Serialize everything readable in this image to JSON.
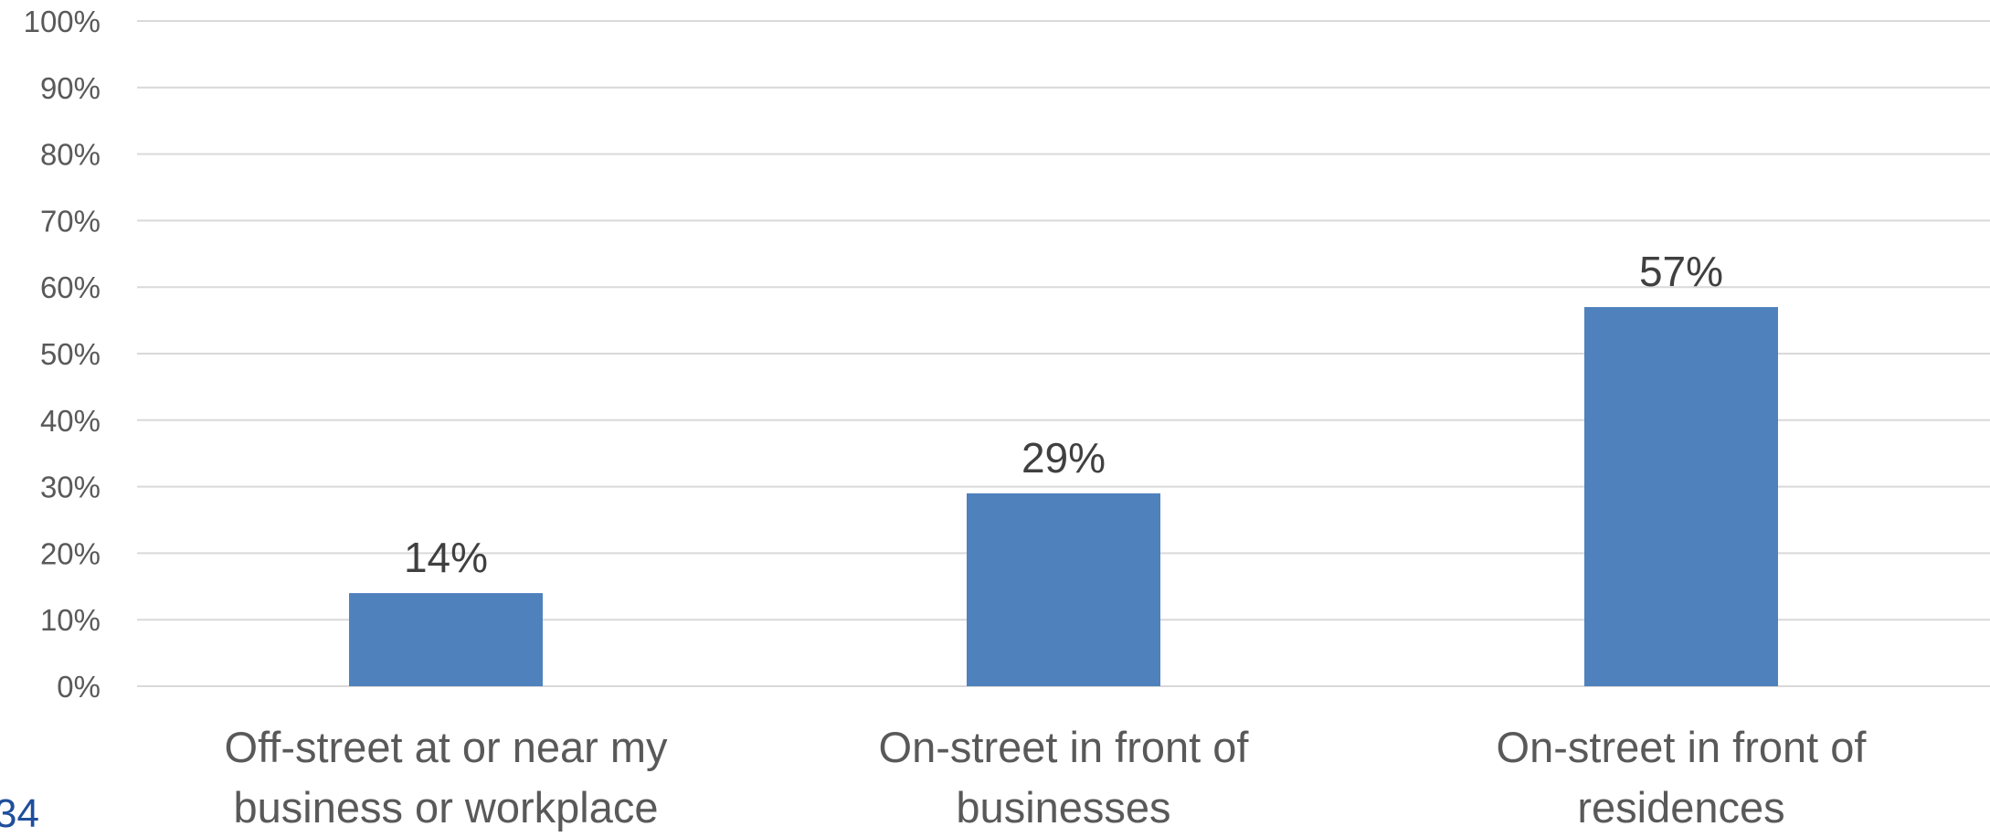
{
  "chart_data": {
    "type": "bar",
    "categories": [
      [
        "Off-street at or near my",
        "business or workplace"
      ],
      [
        "On-street in front of",
        "businesses"
      ],
      [
        "On-street in front of",
        "residences"
      ]
    ],
    "values": [
      14,
      29,
      57
    ],
    "data_labels": [
      "14%",
      "29%",
      "57%"
    ],
    "ylim": [
      0,
      100
    ],
    "yticks": [
      "0%",
      "10%",
      "20%",
      "30%",
      "40%",
      "50%",
      "60%",
      "70%",
      "80%",
      "90%",
      "100%"
    ],
    "grid": true,
    "bar_color": "#4f81bd"
  },
  "page_number": "34"
}
